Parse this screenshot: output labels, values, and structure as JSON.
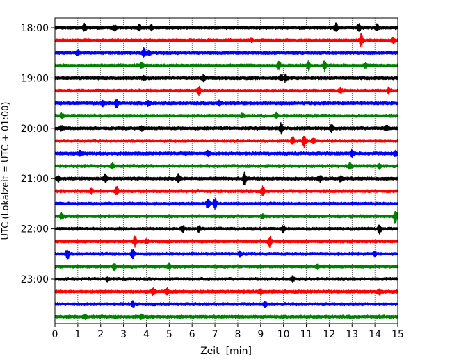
{
  "chart_data": {
    "type": "line",
    "title": "",
    "xlabel": "Zeit  [min]",
    "ylabel": "UTC (Lokalzeit = UTC + 01:00)",
    "xlim": [
      0,
      15
    ],
    "x_ticks": [
      0,
      1,
      2,
      3,
      4,
      5,
      6,
      7,
      8,
      9,
      10,
      11,
      12,
      13,
      14,
      15
    ],
    "x_tick_labels": [
      "0",
      "1",
      "2",
      "3",
      "4",
      "5",
      "6",
      "7",
      "8",
      "9",
      "10",
      "11",
      "12",
      "13",
      "14",
      "15"
    ],
    "grid": "vertical dotted",
    "minutes_per_trace": 15,
    "trace_colors": [
      "#000000",
      "#ff0000",
      "#0000ff",
      "#008000"
    ],
    "y_tick_labels": [
      {
        "trace_index": 0,
        "label": "18:00"
      },
      {
        "trace_index": 4,
        "label": "19:00"
      },
      {
        "trace_index": 8,
        "label": "20:00"
      },
      {
        "trace_index": 12,
        "label": "21:00"
      },
      {
        "trace_index": 16,
        "label": "22:00"
      },
      {
        "trace_index": 20,
        "label": "23:00"
      }
    ],
    "series": [
      {
        "name": "18:00",
        "color": "#000000",
        "events": [
          {
            "t": 1.3,
            "a": 0.6
          },
          {
            "t": 2.6,
            "a": 0.4
          },
          {
            "t": 3.7,
            "a": 0.45
          },
          {
            "t": 4.2,
            "a": 0.4
          },
          {
            "t": 12.3,
            "a": 0.7
          },
          {
            "t": 13.3,
            "a": 0.5
          },
          {
            "t": 14.1,
            "a": 0.45
          }
        ]
      },
      {
        "name": "18:15",
        "color": "#ff0000",
        "events": [
          {
            "t": 8.6,
            "a": 0.3
          },
          {
            "t": 13.4,
            "a": 1.0
          },
          {
            "t": 14.8,
            "a": 0.4
          }
        ]
      },
      {
        "name": "18:30",
        "color": "#0000ff",
        "events": [
          {
            "t": 1.0,
            "a": 0.35
          },
          {
            "t": 3.9,
            "a": 0.7
          },
          {
            "t": 4.1,
            "a": 0.4
          }
        ]
      },
      {
        "name": "18:45",
        "color": "#008000",
        "events": [
          {
            "t": 3.8,
            "a": 0.4
          },
          {
            "t": 9.8,
            "a": 0.7
          },
          {
            "t": 11.1,
            "a": 0.6
          },
          {
            "t": 11.8,
            "a": 0.8
          },
          {
            "t": 13.6,
            "a": 0.3
          }
        ]
      },
      {
        "name": "19:00",
        "color": "#000000",
        "events": [
          {
            "t": 3.9,
            "a": 0.3
          },
          {
            "t": 6.5,
            "a": 0.4
          },
          {
            "t": 9.9,
            "a": 0.5
          },
          {
            "t": 10.1,
            "a": 0.6
          }
        ]
      },
      {
        "name": "19:15",
        "color": "#ff0000",
        "events": [
          {
            "t": 6.3,
            "a": 0.6
          },
          {
            "t": 12.5,
            "a": 0.35
          },
          {
            "t": 14.6,
            "a": 0.35
          }
        ]
      },
      {
        "name": "19:30",
        "color": "#0000ff",
        "events": [
          {
            "t": 2.1,
            "a": 0.45
          },
          {
            "t": 2.7,
            "a": 0.6
          },
          {
            "t": 4.1,
            "a": 0.35
          },
          {
            "t": 7.2,
            "a": 0.35
          }
        ]
      },
      {
        "name": "19:45",
        "color": "#008000",
        "events": [
          {
            "t": 0.3,
            "a": 0.35
          },
          {
            "t": 8.2,
            "a": 0.3
          },
          {
            "t": 9.7,
            "a": 0.35
          }
        ]
      },
      {
        "name": "20:00",
        "color": "#000000",
        "events": [
          {
            "t": 0.3,
            "a": 0.35
          },
          {
            "t": 3.8,
            "a": 0.35
          },
          {
            "t": 9.9,
            "a": 0.7
          },
          {
            "t": 12.1,
            "a": 0.5
          },
          {
            "t": 14.5,
            "a": 0.35
          }
        ]
      },
      {
        "name": "20:15",
        "color": "#ff0000",
        "events": [
          {
            "t": 10.4,
            "a": 0.6
          },
          {
            "t": 10.9,
            "a": 1.0
          },
          {
            "t": 11.3,
            "a": 0.4
          }
        ]
      },
      {
        "name": "20:30",
        "color": "#0000ff",
        "events": [
          {
            "t": 1.1,
            "a": 0.35
          },
          {
            "t": 6.7,
            "a": 0.35
          },
          {
            "t": 13.0,
            "a": 0.6
          },
          {
            "t": 14.9,
            "a": 0.35
          }
        ]
      },
      {
        "name": "20:45",
        "color": "#008000",
        "events": [
          {
            "t": 2.5,
            "a": 0.3
          },
          {
            "t": 12.9,
            "a": 0.5
          },
          {
            "t": 14.2,
            "a": 0.35
          }
        ]
      },
      {
        "name": "21:00",
        "color": "#000000",
        "events": [
          {
            "t": 0.15,
            "a": 0.4
          },
          {
            "t": 2.2,
            "a": 0.6
          },
          {
            "t": 5.4,
            "a": 0.6
          },
          {
            "t": 8.3,
            "a": 1.0
          },
          {
            "t": 11.6,
            "a": 0.4
          },
          {
            "t": 12.5,
            "a": 0.35
          }
        ]
      },
      {
        "name": "21:15",
        "color": "#ff0000",
        "events": [
          {
            "t": 1.6,
            "a": 0.35
          },
          {
            "t": 2.7,
            "a": 0.6
          },
          {
            "t": 9.1,
            "a": 0.7
          }
        ]
      },
      {
        "name": "21:30",
        "color": "#0000ff",
        "events": [
          {
            "t": 6.7,
            "a": 0.8
          },
          {
            "t": 7.0,
            "a": 0.7
          }
        ]
      },
      {
        "name": "21:45",
        "color": "#008000",
        "events": [
          {
            "t": 0.3,
            "a": 0.35
          },
          {
            "t": 9.1,
            "a": 0.35
          },
          {
            "t": 14.9,
            "a": 1.0
          }
        ]
      },
      {
        "name": "22:00",
        "color": "#000000",
        "events": [
          {
            "t": 5.6,
            "a": 0.45
          },
          {
            "t": 6.3,
            "a": 0.4
          },
          {
            "t": 10.0,
            "a": 0.5
          },
          {
            "t": 14.2,
            "a": 0.7
          }
        ]
      },
      {
        "name": "22:15",
        "color": "#ff0000",
        "events": [
          {
            "t": 3.5,
            "a": 0.7
          },
          {
            "t": 4.0,
            "a": 0.4
          },
          {
            "t": 9.4,
            "a": 0.8
          }
        ]
      },
      {
        "name": "22:30",
        "color": "#0000ff",
        "events": [
          {
            "t": 0.55,
            "a": 0.8
          },
          {
            "t": 3.4,
            "a": 0.8
          },
          {
            "t": 8.1,
            "a": 0.35
          },
          {
            "t": 14.0,
            "a": 0.35
          }
        ]
      },
      {
        "name": "22:45",
        "color": "#008000",
        "events": [
          {
            "t": 2.6,
            "a": 0.5
          },
          {
            "t": 5.0,
            "a": 0.35
          },
          {
            "t": 11.5,
            "a": 0.35
          }
        ]
      },
      {
        "name": "23:00",
        "color": "#000000",
        "events": [
          {
            "t": 2.3,
            "a": 0.3
          },
          {
            "t": 10.4,
            "a": 0.3
          }
        ]
      },
      {
        "name": "23:15",
        "color": "#ff0000",
        "events": [
          {
            "t": 4.3,
            "a": 0.6
          },
          {
            "t": 4.9,
            "a": 0.5
          },
          {
            "t": 9.0,
            "a": 0.35
          },
          {
            "t": 14.2,
            "a": 0.35
          }
        ]
      },
      {
        "name": "23:30",
        "color": "#0000ff",
        "events": [
          {
            "t": 3.4,
            "a": 0.4
          },
          {
            "t": 9.2,
            "a": 0.35
          }
        ]
      },
      {
        "name": "23:45",
        "color": "#008000",
        "events": [
          {
            "t": 1.3,
            "a": 0.3
          },
          {
            "t": 3.8,
            "a": 0.3
          }
        ]
      }
    ]
  }
}
